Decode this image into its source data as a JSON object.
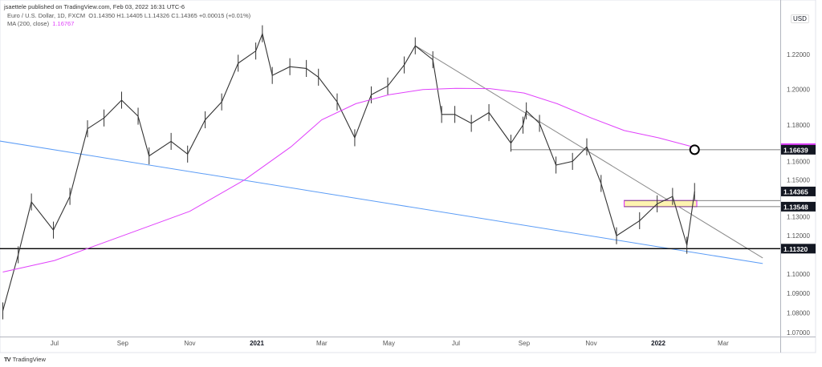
{
  "header": {
    "published": "jsaettele published on TradingView.com, Feb 03, 2022 16:31 UTC-6",
    "symbol": "Euro / U.S. Dollar, 1D, FXCM",
    "ohlc": "O1.14350  H1.14405  L1.14326  C1.14365  +0.00015 (+0.01%)",
    "ma_label": "MA (200, close)",
    "ma_value": "1.16767"
  },
  "footer": {
    "logo": "TradingView",
    "logo_mark": "TV"
  },
  "currency": "USD",
  "colors": {
    "price": "#333333",
    "ma": "#e040fb",
    "blue_trendline": "#5b9cf6",
    "grey_trendline": "#8a8a8a",
    "level": "#131722",
    "zone_fill": "#fff3b0",
    "zone_border": "#e040fb"
  },
  "chart_data": {
    "type": "ohlc",
    "scale": "log",
    "ylim": [
      1.07,
      1.245
    ],
    "xlim": [
      "2020-05-12",
      "2022-04-10"
    ],
    "x_ticks": [
      {
        "d": "2020-07-01",
        "label": "Jul"
      },
      {
        "d": "2020-09-01",
        "label": "Sep"
      },
      {
        "d": "2020-11-01",
        "label": "Nov"
      },
      {
        "d": "2021-01-01",
        "label": "2021",
        "bold": true
      },
      {
        "d": "2021-03-01",
        "label": "Mar"
      },
      {
        "d": "2021-05-01",
        "label": "May"
      },
      {
        "d": "2021-07-01",
        "label": "Jul"
      },
      {
        "d": "2021-09-01",
        "label": "Sep"
      },
      {
        "d": "2021-11-01",
        "label": "Nov"
      },
      {
        "d": "2022-01-01",
        "label": "2022",
        "bold": true
      },
      {
        "d": "2022-03-01",
        "label": "Mar"
      }
    ],
    "y_ticks": [
      "1.22000",
      "1.20000",
      "1.18000",
      "1.16000",
      "1.15000",
      "1.13000",
      "1.12000",
      "1.10000",
      "1.09000",
      "1.08000",
      "1.07000"
    ],
    "series": [
      {
        "type": "price",
        "points": [
          [
            "2020-05-15",
            1.081
          ],
          [
            "2020-05-29",
            1.11
          ],
          [
            "2020-06-10",
            1.138
          ],
          [
            "2020-06-30",
            1.123
          ],
          [
            "2020-07-15",
            1.141
          ],
          [
            "2020-07-31",
            1.178
          ],
          [
            "2020-08-15",
            1.184
          ],
          [
            "2020-08-31",
            1.194
          ],
          [
            "2020-09-15",
            1.185
          ],
          [
            "2020-09-25",
            1.163
          ],
          [
            "2020-10-15",
            1.171
          ],
          [
            "2020-10-30",
            1.164
          ],
          [
            "2020-11-15",
            1.183
          ],
          [
            "2020-11-30",
            1.193
          ],
          [
            "2020-12-15",
            1.215
          ],
          [
            "2020-12-31",
            1.222
          ],
          [
            "2021-01-06",
            1.232
          ],
          [
            "2021-01-15",
            1.208
          ],
          [
            "2021-01-31",
            1.213
          ],
          [
            "2021-02-15",
            1.212
          ],
          [
            "2021-02-26",
            1.207
          ],
          [
            "2021-03-15",
            1.193
          ],
          [
            "2021-03-31",
            1.173
          ],
          [
            "2021-04-15",
            1.197
          ],
          [
            "2021-04-30",
            1.202
          ],
          [
            "2021-05-15",
            1.214
          ],
          [
            "2021-05-25",
            1.225
          ],
          [
            "2021-06-10",
            1.217
          ],
          [
            "2021-06-18",
            1.186
          ],
          [
            "2021-06-30",
            1.186
          ],
          [
            "2021-07-15",
            1.181
          ],
          [
            "2021-07-31",
            1.187
          ],
          [
            "2021-08-20",
            1.17
          ],
          [
            "2021-08-31",
            1.18
          ],
          [
            "2021-09-03",
            1.188
          ],
          [
            "2021-09-15",
            1.181
          ],
          [
            "2021-09-30",
            1.158
          ],
          [
            "2021-10-15",
            1.16
          ],
          [
            "2021-10-28",
            1.168
          ],
          [
            "2021-11-10",
            1.148
          ],
          [
            "2021-11-24",
            1.12
          ],
          [
            "2021-12-15",
            1.128
          ],
          [
            "2021-12-31",
            1.137
          ],
          [
            "2022-01-14",
            1.141
          ],
          [
            "2022-01-27",
            1.115
          ],
          [
            "2022-02-03",
            1.14365
          ]
        ]
      },
      {
        "type": "ma",
        "name": "MA (200, close)",
        "points": [
          [
            "2020-05-15",
            1.101
          ],
          [
            "2020-07-01",
            1.107
          ],
          [
            "2020-09-01",
            1.12
          ],
          [
            "2020-11-01",
            1.133
          ],
          [
            "2020-12-21",
            1.15
          ],
          [
            "2021-02-01",
            1.168
          ],
          [
            "2021-03-01",
            1.183
          ],
          [
            "2021-04-01",
            1.192
          ],
          [
            "2021-05-01",
            1.197
          ],
          [
            "2021-06-01",
            1.2
          ],
          [
            "2021-07-01",
            1.2007
          ],
          [
            "2021-08-01",
            1.2005
          ],
          [
            "2021-09-01",
            1.198
          ],
          [
            "2021-10-01",
            1.192
          ],
          [
            "2021-11-01",
            1.184
          ],
          [
            "2021-12-01",
            1.177
          ],
          [
            "2022-01-01",
            1.173
          ],
          [
            "2022-02-03",
            1.1677
          ]
        ]
      }
    ],
    "trendlines": [
      {
        "color": "blue",
        "from": [
          "2020-05-12",
          1.1712
        ],
        "to": [
          "2022-04-06",
          1.1054
        ]
      },
      {
        "color": "grey",
        "from": [
          "2021-05-25",
          1.2251
        ],
        "to": [
          "2022-04-06",
          1.1083
        ]
      }
    ],
    "levels": [
      {
        "price": 1.16639,
        "from": "2021-08-20",
        "label": "1.16639"
      },
      {
        "price": 1.13548,
        "from": "2021-12-01",
        "label": "1.13548"
      },
      {
        "price": 1.13878,
        "from": "2021-12-01"
      },
      {
        "price": 1.1132,
        "from": "2020-05-12",
        "label": "1.11320"
      }
    ],
    "zone": {
      "from": "2021-12-01",
      "to": "2022-02-05",
      "low": 1.13548,
      "high": 1.13878
    },
    "marker": {
      "date": "2022-02-03",
      "price": 1.16639,
      "shape": "circle"
    },
    "last_price": {
      "price": 1.14365,
      "label": "1.14365"
    }
  }
}
